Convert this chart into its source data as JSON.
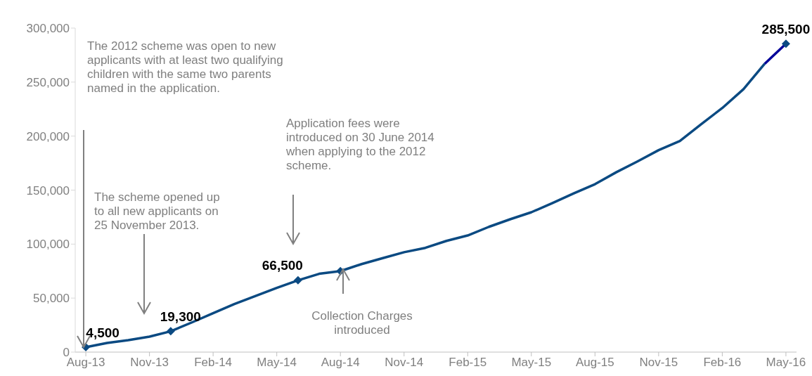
{
  "chart_data": {
    "type": "line",
    "categories": [
      "Aug-13",
      null,
      null,
      "Nov-13",
      null,
      null,
      "Feb-14",
      null,
      null,
      "May-14",
      null,
      null,
      "Aug-14",
      null,
      null,
      "Nov-14",
      null,
      null,
      "Feb-15",
      null,
      null,
      "May-15",
      null,
      null,
      "Aug-15",
      null,
      null,
      "Nov-15",
      null,
      null,
      "Feb-16",
      null,
      null,
      "May-16"
    ],
    "series": [
      {
        "color": "#0b4a82",
        "marker": "none",
        "values": [
          4500,
          8500,
          11000,
          14300,
          19300,
          27500,
          36000,
          44500,
          52000,
          59500,
          66500,
          72500,
          75000,
          81500,
          87000,
          92500,
          96500,
          103000,
          108000,
          116000,
          123000,
          129500,
          138000,
          147000,
          155500,
          166500,
          176500,
          187000,
          195500,
          211000,
          226000,
          243500,
          267000,
          null
        ]
      },
      {
        "color": "#000099",
        "marker": "none",
        "values": [
          null,
          null,
          null,
          null,
          null,
          null,
          null,
          null,
          null,
          null,
          null,
          null,
          null,
          null,
          null,
          null,
          null,
          null,
          null,
          null,
          null,
          null,
          null,
          null,
          null,
          null,
          null,
          null,
          null,
          null,
          null,
          null,
          267000,
          285500
        ]
      },
      {
        "type": "scatter",
        "color": "#0b4a82",
        "marker": "diamond",
        "values": [
          4500,
          null,
          null,
          null,
          19300,
          null,
          null,
          null,
          null,
          null,
          66500,
          null,
          75000,
          null,
          null,
          null,
          null,
          null,
          null,
          null,
          null,
          null,
          null,
          null,
          null,
          null,
          null,
          null,
          null,
          null,
          null,
          null,
          null,
          285500
        ],
        "value_labels": [
          "4,500",
          null,
          null,
          null,
          "19,300",
          null,
          null,
          null,
          null,
          null,
          "66,500",
          null,
          null,
          null,
          null,
          null,
          null,
          null,
          null,
          null,
          null,
          null,
          null,
          null,
          null,
          null,
          null,
          null,
          null,
          null,
          null,
          null,
          null,
          "285,500"
        ]
      }
    ],
    "ylim": [
      0,
      300000
    ],
    "yticks": [
      0,
      {
        "value": 50000,
        "label": "50,000"
      },
      {
        "value": 100000,
        "label": "100,000"
      },
      {
        "value": 150000,
        "label": "150,000"
      },
      {
        "value": 200000,
        "label": "200,000"
      },
      {
        "value": 250000,
        "label": "250,000"
      },
      {
        "value": 300000,
        "label": "300,000"
      }
    ],
    "annotations": [
      "The 2012 scheme was open to new applicants with at least two qualifying children with the same two parents named in the application.",
      "The scheme opened up to all new applicants on 25 November 2013.",
      "Application fees were introduced on 30 June 2014  when applying to the 2012 scheme.",
      "Collection Charges introduced"
    ]
  }
}
